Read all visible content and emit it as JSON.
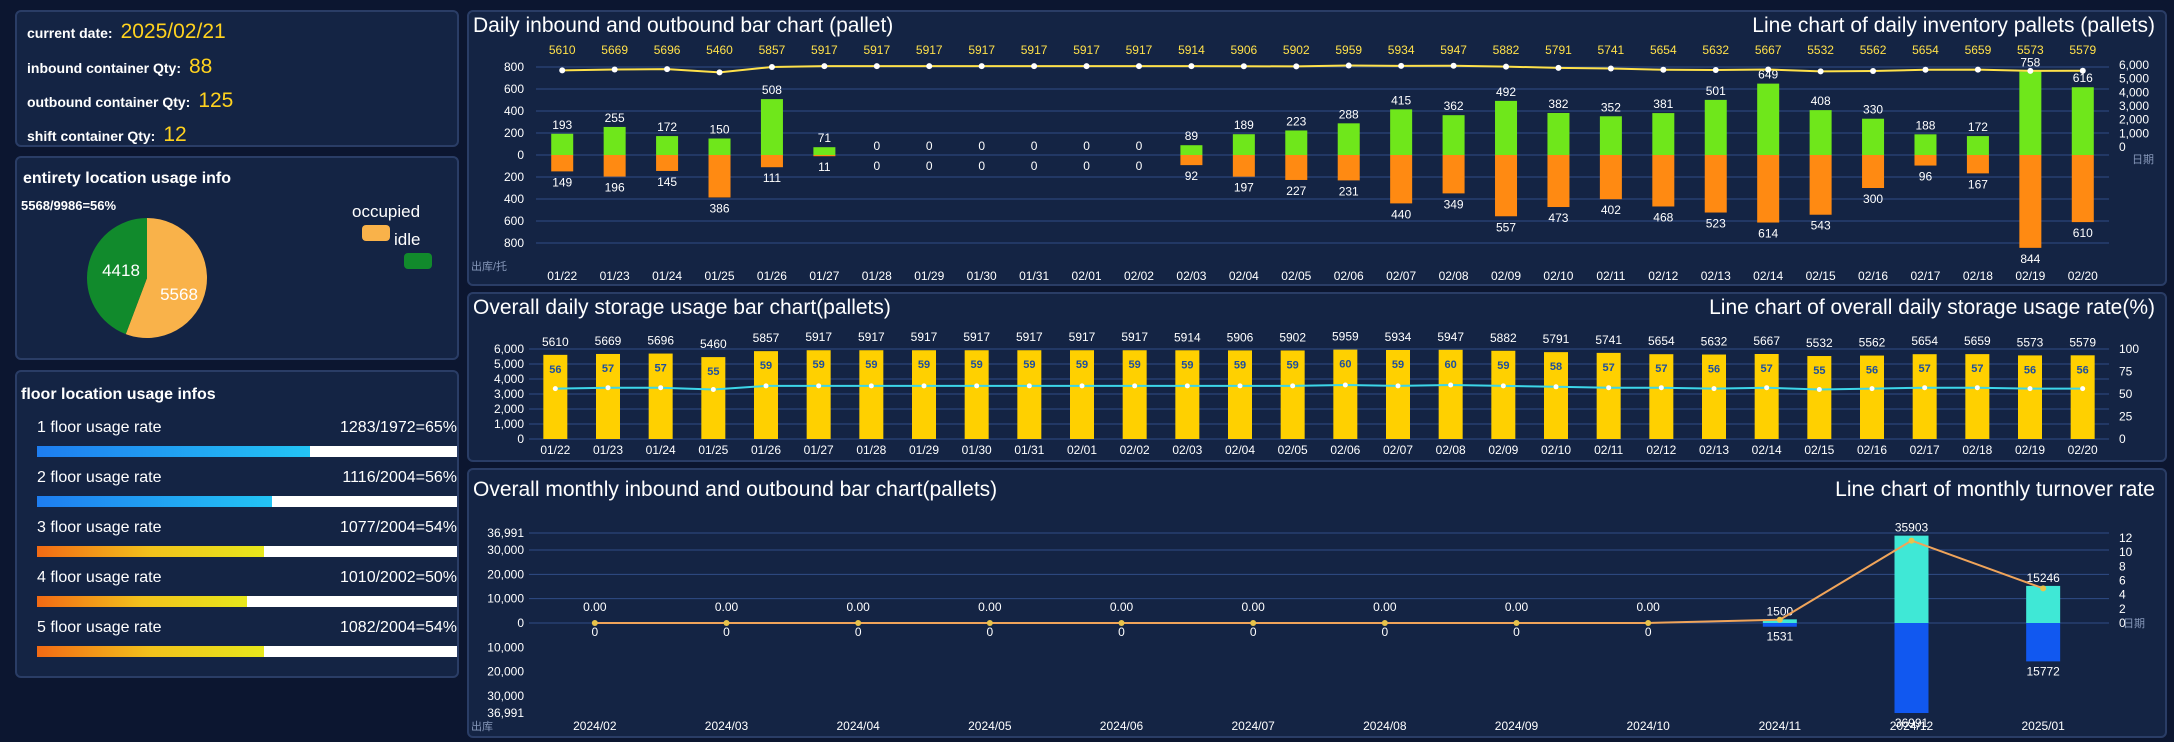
{
  "info": {
    "current_date_label": "current date:",
    "current_date": "2025/02/21",
    "inbound_label": "inbound container Qty:",
    "inbound_qty": "88",
    "outbound_label": "outbound container Qty:",
    "outbound_qty": "125",
    "shift_label": "shift container Qty:",
    "shift_qty": "12"
  },
  "entirety": {
    "title": "entirety location usage info",
    "ratio_text": "5568/9986=56%",
    "occupied_label": "occupied",
    "idle_label": "idle",
    "occupied": 5568,
    "idle": 4418,
    "occupied_color": "#f9b24a",
    "idle_color": "#118a2c"
  },
  "floors": {
    "title": "floor location usage infos",
    "items": [
      {
        "label": "1 floor usage rate",
        "value_text": "1283/1972=65%",
        "percent": 65,
        "gradient": "blue"
      },
      {
        "label": "2 floor usage rate",
        "value_text": "1116/2004=56%",
        "percent": 56,
        "gradient": "blue"
      },
      {
        "label": "3 floor usage rate",
        "value_text": "1077/2004=54%",
        "percent": 54,
        "gradient": "yellow"
      },
      {
        "label": "4 floor usage rate",
        "value_text": "1010/2002=50%",
        "percent": 50,
        "gradient": "yellow"
      },
      {
        "label": "5 floor usage rate",
        "value_text": "1082/2004=54%",
        "percent": 54,
        "gradient": "yellow"
      }
    ]
  },
  "chart_data": [
    {
      "id": "daily_inout",
      "type": "bar",
      "title": "Daily inbound and outbound bar chart (pallet)",
      "title_right": "Line chart of daily inventory pallets (pallets)",
      "categories": [
        "01/22",
        "01/23",
        "01/24",
        "01/25",
        "01/26",
        "01/27",
        "01/28",
        "01/29",
        "01/30",
        "01/31",
        "02/01",
        "02/02",
        "02/03",
        "02/04",
        "02/05",
        "02/06",
        "02/07",
        "02/08",
        "02/09",
        "02/10",
        "02/11",
        "02/12",
        "02/13",
        "02/14",
        "02/15",
        "02/16",
        "02/17",
        "02/18",
        "02/19",
        "02/20"
      ],
      "series": [
        {
          "name": "inbound",
          "color": "#6fe71b",
          "values": [
            193,
            255,
            172,
            150,
            508,
            71,
            0,
            0,
            0,
            0,
            0,
            0,
            89,
            189,
            223,
            288,
            415,
            362,
            492,
            382,
            352,
            381,
            501,
            649,
            408,
            330,
            188,
            172,
            758,
            616
          ]
        },
        {
          "name": "outbound",
          "color": "#ff8a12",
          "values": [
            149,
            196,
            145,
            386,
            111,
            11,
            0,
            0,
            0,
            0,
            0,
            0,
            92,
            197,
            227,
            231,
            440,
            349,
            557,
            473,
            402,
            468,
            523,
            614,
            543,
            300,
            96,
            167,
            844,
            610
          ]
        },
        {
          "name": "inventory",
          "type": "line",
          "color": "#ffe14a",
          "values": [
            5610,
            5669,
            5696,
            5460,
            5857,
            5917,
            5917,
            5917,
            5917,
            5917,
            5917,
            5917,
            5914,
            5906,
            5902,
            5959,
            5934,
            5947,
            5882,
            5791,
            5741,
            5654,
            5632,
            5667,
            5532,
            5562,
            5654,
            5659,
            5573,
            5579
          ]
        }
      ],
      "y_left_ticks": [
        "800",
        "600",
        "400",
        "200",
        "0",
        "200",
        "400",
        "600",
        "800"
      ],
      "y_right_ticks": [
        "6,000",
        "5,000",
        "4,000",
        "3,000",
        "2,000",
        "1,000",
        "0"
      ],
      "y_left_unit": "出库/托",
      "y_right_unit": "日期",
      "ylim": [
        -800,
        800
      ],
      "y2lim": [
        0,
        6000
      ]
    },
    {
      "id": "daily_storage",
      "type": "bar",
      "title": "Overall daily storage usage bar chart(pallets)",
      "title_right": "Line chart of overall daily storage usage rate(%)",
      "categories": [
        "01/22",
        "01/23",
        "01/24",
        "01/25",
        "01/26",
        "01/27",
        "01/28",
        "01/29",
        "01/30",
        "01/31",
        "02/01",
        "02/02",
        "02/03",
        "02/04",
        "02/05",
        "02/06",
        "02/07",
        "02/08",
        "02/09",
        "02/10",
        "02/11",
        "02/12",
        "02/13",
        "02/14",
        "02/15",
        "02/16",
        "02/17",
        "02/18",
        "02/19",
        "02/20"
      ],
      "series": [
        {
          "name": "storage",
          "color": "#ffd000",
          "values": [
            5610,
            5669,
            5696,
            5460,
            5857,
            5917,
            5917,
            5917,
            5917,
            5917,
            5917,
            5917,
            5914,
            5906,
            5902,
            5959,
            5934,
            5947,
            5882,
            5791,
            5741,
            5654,
            5632,
            5667,
            5532,
            5562,
            5654,
            5659,
            5573,
            5579
          ]
        },
        {
          "name": "usage_rate",
          "type": "line",
          "color": "#3dd6e8",
          "values": [
            56,
            57,
            57,
            55,
            59,
            59,
            59,
            59,
            59,
            59,
            59,
            59,
            59,
            59,
            59,
            60,
            59,
            60,
            59,
            58,
            57,
            57,
            56,
            57,
            55,
            56,
            57,
            57,
            56,
            56
          ]
        }
      ],
      "y_left_ticks": [
        "6,000",
        "5,000",
        "4,000",
        "3,000",
        "2,000",
        "1,000",
        "0"
      ],
      "y_right_ticks": [
        "100",
        "75",
        "50",
        "25",
        "0"
      ],
      "ylim": [
        0,
        6000
      ],
      "y2lim": [
        0,
        100
      ]
    },
    {
      "id": "monthly_inout",
      "type": "bar",
      "title": "Overall monthly inbound and outbound bar chart(pallets)",
      "title_right": "Line chart of monthly turnover rate",
      "categories": [
        "2024/02",
        "2024/03",
        "2024/04",
        "2024/05",
        "2024/06",
        "2024/07",
        "2024/08",
        "2024/09",
        "2024/10",
        "2024/11",
        "2024/12",
        "2025/01"
      ],
      "series": [
        {
          "name": "inbound",
          "color": "#3fe8d6",
          "values": [
            0,
            0,
            0,
            0,
            0,
            0,
            0,
            0,
            0,
            1500,
            35903,
            15246
          ]
        },
        {
          "name": "outbound",
          "color": "#1158f0",
          "values": [
            0,
            0,
            0,
            0,
            0,
            0,
            0,
            0,
            0,
            1531,
            36991,
            15772
          ]
        },
        {
          "name": "turnover",
          "type": "line",
          "color": "#f0a45a",
          "values": [
            0,
            0,
            0,
            0,
            0,
            0,
            0,
            0,
            0,
            0.5,
            12.6,
            5.3
          ]
        }
      ],
      "point_labels": [
        "0.00",
        "0.00",
        "0.00",
        "0.00",
        "0.00",
        "0.00",
        "0.00",
        "0.00",
        "0.00",
        "1500",
        "35903",
        "15246"
      ],
      "neg_labels": [
        "0",
        "0",
        "0",
        "0",
        "0",
        "0",
        "0",
        "0",
        "0",
        "1531",
        "36991",
        "15772"
      ],
      "y_left_ticks_pos": [
        "36,991",
        "30,000",
        "20,000",
        "10,000",
        "0"
      ],
      "y_left_ticks_neg": [
        "10,000",
        "20,000",
        "30,000",
        "36,991"
      ],
      "y_right_ticks": [
        "12",
        "10",
        "8",
        "6",
        "4",
        "2",
        "0"
      ],
      "y_left_unit": "出库",
      "y_right_unit": "日期",
      "ylim": [
        -36991,
        36991
      ],
      "y2lim": [
        0,
        13
      ]
    }
  ]
}
